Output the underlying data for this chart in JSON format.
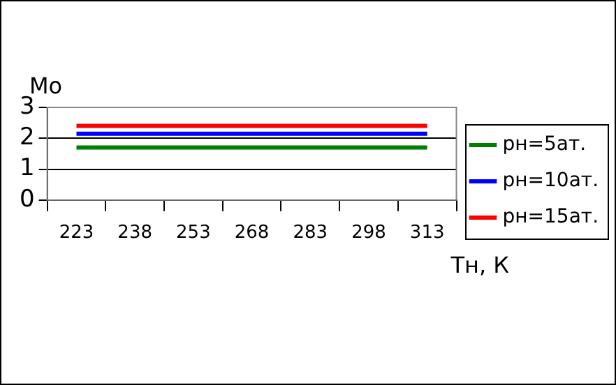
{
  "chart_data": {
    "type": "line",
    "xlabel": "Тн, К",
    "ylabel": "Mo",
    "categories": [
      "223",
      "238",
      "253",
      "268",
      "283",
      "298",
      "313"
    ],
    "series": [
      {
        "name": "рн=5ат.",
        "color": "#008000",
        "values": [
          1.7,
          1.7,
          1.7,
          1.7,
          1.7,
          1.7,
          1.7
        ]
      },
      {
        "name": "рн=10ат.",
        "color": "#0000ff",
        "values": [
          2.15,
          2.15,
          2.15,
          2.15,
          2.15,
          2.15,
          2.15
        ]
      },
      {
        "name": "рн=15ат.",
        "color": "#ff0000",
        "values": [
          2.4,
          2.4,
          2.4,
          2.4,
          2.4,
          2.4,
          2.4
        ]
      }
    ],
    "ylim": [
      0,
      3
    ],
    "yticks": [
      0,
      1,
      2,
      3
    ],
    "grid": "y",
    "legend": "right",
    "marker": "none",
    "line_style": "solid"
  }
}
